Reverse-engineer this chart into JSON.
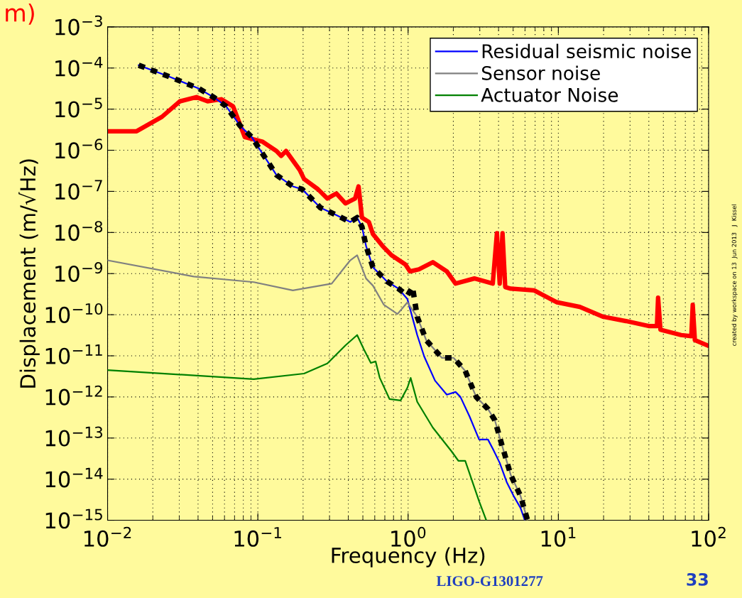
{
  "chart_data": {
    "type": "line",
    "xlabel": "Frequency (Hz)",
    "ylabel": "Displacement (m/√Hz)",
    "log": "xy",
    "grid": true,
    "legend": "top right",
    "xlim": [
      0.01,
      100
    ],
    "ylim": [
      1e-15,
      0.001
    ],
    "xticks": [
      {
        "value": 0.01,
        "label": "10$^{−2}$"
      },
      {
        "value": 0.1,
        "label": "10$^{−1}$"
      },
      {
        "value": 1,
        "label": "10$^{0}$"
      },
      {
        "value": 10,
        "label": "10$^{1}$"
      },
      {
        "value": 100,
        "label": "10$^{2}$"
      }
    ],
    "yticks": [
      {
        "value": 1e-15,
        "label": "10$^{−15}$"
      },
      {
        "value": 1e-14,
        "label": "10$^{−14}$"
      },
      {
        "value": 1e-13,
        "label": "10$^{−13}$"
      },
      {
        "value": 1e-12,
        "label": "10$^{−12}$"
      },
      {
        "value": 1e-11,
        "label": "10$^{−11}$"
      },
      {
        "value": 1e-10,
        "label": "10$^{−10}$"
      },
      {
        "value": 1e-09,
        "label": "10$^{−9}$"
      },
      {
        "value": 1e-08,
        "label": "10$^{−8}$"
      },
      {
        "value": 1e-07,
        "label": "10$^{−7}$"
      },
      {
        "value": 1e-06,
        "label": "10$^{−6}$"
      },
      {
        "value": 1e-05,
        "label": "10$^{−5}$"
      },
      {
        "value": 0.0001,
        "label": "10$^{−4}$"
      },
      {
        "value": 0.001,
        "label": "10$^{−3}$"
      }
    ],
    "series": [
      {
        "color": "#ff0000",
        "x": [
          0.01,
          0.0156,
          0.023,
          0.0303,
          0.039,
          0.0463,
          0.0571,
          0.0684,
          0.0818,
          0.1076,
          0.133,
          0.143,
          0.154,
          0.19,
          0.203,
          0.251,
          0.29,
          0.333,
          0.383,
          0.444,
          0.468,
          0.493,
          0.548,
          0.583,
          0.676,
          0.776,
          0.959,
          1.03,
          1.18,
          1.46,
          1.81,
          2.07,
          2.76,
          3.66,
          3.9,
          4.07,
          4.25,
          4.43,
          4.82,
          6.9,
          9.8,
          13.9,
          19.9,
          28.2,
          39.9,
          45.3,
          46.1,
          47.8,
          65.6,
          76.7,
          78.4,
          81,
          97.8
        ],
        "values": [
          2.9e-06,
          2.9e-06,
          6.5e-06,
          1.55e-05,
          1.96e-05,
          1.55e-05,
          1.74e-05,
          1.17e-05,
          2.1e-06,
          1.61e-06,
          9.6e-07,
          7.3e-07,
          9.6e-07,
          3.3e-07,
          2e-07,
          1.13e-07,
          6.7e-08,
          8.9e-08,
          5.1e-08,
          6.7e-08,
          1.32e-07,
          2.3e-08,
          1.8e-08,
          9.2e-09,
          4.7e-09,
          2.8e-09,
          1.67e-09,
          1.13e-09,
          1.27e-09,
          1.89e-09,
          1.13e-09,
          5.7e-10,
          7.6e-10,
          5.7e-10,
          9.6e-09,
          5.7e-10,
          9.6e-09,
          4.7e-10,
          4.3e-10,
          3.9e-10,
          2e-10,
          1.55e-10,
          8.9e-11,
          7e-11,
          5.3e-11,
          5.3e-11,
          2.6e-10,
          4.3e-11,
          3.2e-11,
          3e-11,
          1.74e-10,
          2.4e-11,
          1.8e-11
        ]
      },
      {
        "name": "Residual seismic noise",
        "color": "#0000ff",
        "x": [
          0.0161,
          0.0256,
          0.0403,
          0.0514,
          0.0615,
          0.076,
          0.091,
          0.1076,
          0.133,
          0.171,
          0.197,
          0.261,
          0.323,
          0.412,
          0.458,
          0.493,
          0.525,
          0.583,
          0.721,
          0.863,
          0.989,
          1.15,
          1.28,
          1.51,
          1.81,
          2.07,
          2.23,
          2.56,
          2.97,
          3.4,
          3.66,
          4.07,
          4.53,
          5.04,
          5.6,
          5.96
        ],
        "values": [
          0.000117,
          6.2e-05,
          3.2e-05,
          1.89e-05,
          1.17e-05,
          4e-06,
          2.1e-06,
          8.2e-07,
          2.5e-07,
          1.32e-07,
          1.13e-07,
          4e-08,
          2.8e-08,
          1.8e-08,
          2.3e-08,
          1.37e-08,
          4.7e-09,
          1.43e-09,
          6.5e-10,
          4.3e-10,
          2.4e-10,
          3.2e-11,
          9.6e-12,
          2.5e-12,
          1.13e-12,
          1.32e-12,
          1e-12,
          3.4e-13,
          9.2e-14,
          9.2e-14,
          5.5e-14,
          2.5e-14,
          8.5e-15,
          3.9e-15,
          2e-15,
          1.04e-15
        ]
      },
      {
        "name": "Sensor noise",
        "color": "#808080",
        "x": [
          0.01,
          0.0374,
          0.094,
          0.171,
          0.31,
          0.412,
          0.458,
          0.525,
          0.583,
          0.69,
          0.85,
          0.989,
          1.15,
          1.32,
          1.68,
          2.01,
          2.4,
          2.84,
          3.4,
          3.78,
          4.2,
          4.82,
          5.6,
          6.22
        ],
        "values": [
          2.1e-09,
          8.5e-10,
          6.2e-10,
          3.9e-10,
          5.7e-10,
          2.1e-09,
          2.8e-09,
          7.6e-10,
          5.1e-10,
          1.74e-10,
          1.04e-10,
          2e-10,
          8.9e-11,
          2.4e-11,
          8.9e-12,
          8.9e-12,
          4.3e-12,
          1e-12,
          5.1e-13,
          2.7e-13,
          7e-14,
          1.27e-14,
          3.9e-15,
          1.04e-15
        ]
      },
      {
        "name": "Actuator Noise",
        "color": "#008000",
        "x": [
          0.01,
          0.094,
          0.203,
          0.29,
          0.383,
          0.458,
          0.508,
          0.565,
          0.608,
          0.648,
          0.752,
          0.891,
          0.989,
          1.04,
          1.15,
          1.46,
          1.95,
          2.16,
          2.4,
          2.97,
          3.3
        ],
        "values": [
          4.5e-12,
          2.7e-12,
          3.7e-12,
          6.5e-12,
          1.8e-11,
          3.2e-11,
          1.43e-11,
          6.7e-12,
          7.3e-12,
          2.9e-12,
          8.9e-13,
          8.2e-13,
          1.67e-12,
          2.9e-12,
          7.6e-13,
          1.8e-13,
          4.7e-14,
          2.8e-14,
          2.8e-14,
          2.9e-15,
          1.04e-15
        ]
      },
      {
        "color": "#000000",
        "line_style": "dashed",
        "x": [
          0.0161,
          0.0256,
          0.0403,
          0.0514,
          0.0615,
          0.076,
          0.091,
          0.1076,
          0.133,
          0.171,
          0.197,
          0.261,
          0.323,
          0.412,
          0.458,
          0.493,
          0.525,
          0.583,
          0.721,
          0.863,
          0.989,
          1.07,
          1.15,
          1.32,
          1.68,
          2.01,
          2.4,
          2.84,
          3.4,
          3.78,
          4.2,
          4.82,
          5.6,
          6.22
        ],
        "values": [
          0.000117,
          6.2e-05,
          3.2e-05,
          1.89e-05,
          1.17e-05,
          4e-06,
          2.1e-06,
          8.2e-07,
          2.5e-07,
          1.32e-07,
          1.13e-07,
          4e-08,
          2.8e-08,
          1.8e-08,
          2.3e-08,
          1.37e-08,
          4.7e-09,
          1.43e-09,
          6.5e-10,
          4.3e-10,
          2.9e-10,
          4.7e-10,
          8.9e-11,
          2.4e-11,
          8.9e-12,
          8.9e-12,
          4.3e-12,
          1e-12,
          5.1e-13,
          2.7e-13,
          7e-14,
          1.27e-14,
          3.9e-15,
          1.04e-15
        ]
      }
    ],
    "annotations": [
      "m)",
      "LIGO-G1301277",
      "33",
      "created by workspace on 13  Jun 2013   J  Kissel"
    ]
  }
}
